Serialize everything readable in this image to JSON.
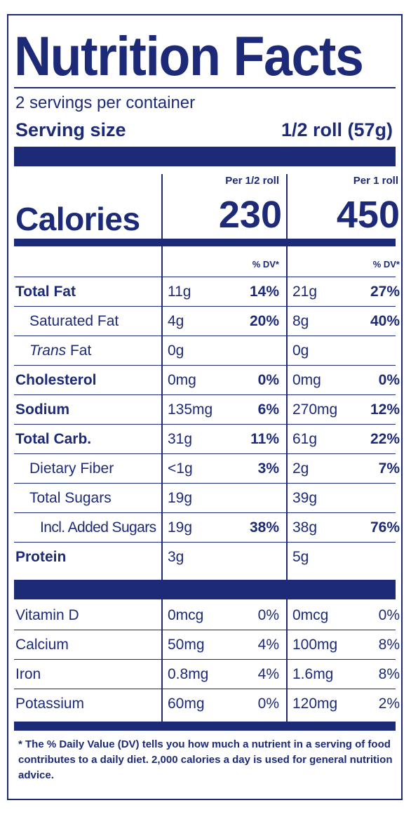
{
  "title": "Nutrition Facts",
  "servings_per_container": "2 servings per container",
  "serving_size_label": "Serving size",
  "serving_size_value": "1/2 roll (57g)",
  "calories_label": "Calories",
  "columns": [
    {
      "header": "Per 1/2 roll",
      "calories": "230",
      "dv_header": "% DV*"
    },
    {
      "header": "Per 1 roll",
      "calories": "450",
      "dv_header": "% DV*"
    }
  ],
  "nutrients": [
    {
      "name": "Total Fat",
      "amt1": "11g",
      "pct1": "14%",
      "amt2": "21g",
      "pct2": "27%"
    },
    {
      "name": "Saturated Fat",
      "amt1": "4g",
      "pct1": "20%",
      "amt2": "8g",
      "pct2": "40%"
    },
    {
      "name_italic": "Trans",
      "name_rest": " Fat",
      "amt1": "0g",
      "pct1": "",
      "amt2": "0g",
      "pct2": ""
    },
    {
      "name": "Cholesterol",
      "amt1": "0mg",
      "pct1": "0%",
      "amt2": "0mg",
      "pct2": "0%"
    },
    {
      "name": "Sodium",
      "amt1": "135mg",
      "pct1": "6%",
      "amt2": "270mg",
      "pct2": "12%"
    },
    {
      "name": "Total Carb.",
      "amt1": "31g",
      "pct1": "11%",
      "amt2": "61g",
      "pct2": "22%"
    },
    {
      "name": "Dietary Fiber",
      "amt1": "<1g",
      "pct1": "3%",
      "amt2": "2g",
      "pct2": "7%"
    },
    {
      "name": "Total Sugars",
      "amt1": "19g",
      "pct1": "",
      "amt2": "39g",
      "pct2": ""
    },
    {
      "name": "Incl. Added Sugars",
      "amt1": "19g",
      "pct1": "38%",
      "amt2": "38g",
      "pct2": "76%"
    },
    {
      "name": "Protein",
      "amt1": "3g",
      "pct1": "",
      "amt2": "5g",
      "pct2": ""
    }
  ],
  "vitamins": [
    {
      "name": "Vitamin D",
      "amt1": "0mcg",
      "pct1": "0%",
      "amt2": "0mcg",
      "pct2": "0%"
    },
    {
      "name": "Calcium",
      "amt1": "50mg",
      "pct1": "4%",
      "amt2": "100mg",
      "pct2": "8%"
    },
    {
      "name": "Iron",
      "amt1": "0.8mg",
      "pct1": "4%",
      "amt2": "1.6mg",
      "pct2": "8%"
    },
    {
      "name": "Potassium",
      "amt1": "60mg",
      "pct1": "0%",
      "amt2": "120mg",
      "pct2": "2%"
    }
  ],
  "footnote": "* The % Daily Value (DV) tells you how much a nutrient in a serving of food contributes to a daily diet. 2,000 calories a day is used for general nutrition advice.",
  "colors": {
    "ink": "#1c2a78",
    "background": "#ffffff"
  }
}
